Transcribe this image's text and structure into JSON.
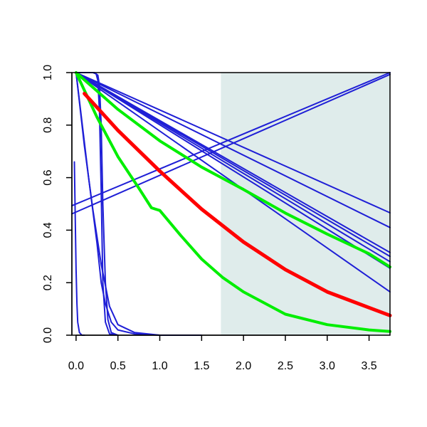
{
  "chart_data": {
    "type": "line",
    "title": "",
    "xlabel": "",
    "ylabel": "",
    "xlim": [
      -0.05,
      3.75
    ],
    "ylim": [
      0,
      1
    ],
    "grid": false,
    "shaded_region": {
      "x_from": 1.73,
      "x_to": 3.75,
      "color": "#dfeceb"
    },
    "x_ticks": [
      {
        "value": 0.0,
        "label": "0.0"
      },
      {
        "value": 0.5,
        "label": "0.5"
      },
      {
        "value": 1.0,
        "label": "1.0"
      },
      {
        "value": 1.5,
        "label": "1.5"
      },
      {
        "value": 2.0,
        "label": "2.0"
      },
      {
        "value": 2.5,
        "label": "2.5"
      },
      {
        "value": 3.0,
        "label": "3.0"
      },
      {
        "value": 3.5,
        "label": "3.5"
      }
    ],
    "y_ticks": [
      {
        "value": 0.0,
        "label": "0.0"
      },
      {
        "value": 0.2,
        "label": "0.2"
      },
      {
        "value": 0.4,
        "label": "0.4"
      },
      {
        "value": 0.6,
        "label": "0.6"
      },
      {
        "value": 0.8,
        "label": "0.8"
      },
      {
        "value": 1.0,
        "label": "1.0"
      }
    ],
    "colors": {
      "blue": "#1f1fd6",
      "red": "#ff0000",
      "green": "#00ee00"
    },
    "series": [
      {
        "color": "blue",
        "width": 2,
        "x": [
          0,
          3.75
        ],
        "y": [
          1.0,
          0.466
        ]
      },
      {
        "color": "blue",
        "width": 2,
        "x": [
          0,
          3.75
        ],
        "y": [
          1.0,
          0.41
        ]
      },
      {
        "color": "blue",
        "width": 2,
        "x": [
          0,
          3.75
        ],
        "y": [
          1.0,
          0.315
        ]
      },
      {
        "color": "blue",
        "width": 2,
        "x": [
          0,
          3.75
        ],
        "y": [
          1.0,
          0.3
        ]
      },
      {
        "color": "blue",
        "width": 2,
        "x": [
          0,
          3.75
        ],
        "y": [
          1.0,
          0.28
        ]
      },
      {
        "color": "blue",
        "width": 2,
        "x": [
          0,
          3.75
        ],
        "y": [
          1.0,
          0.255
        ]
      },
      {
        "color": "blue",
        "width": 2,
        "x": [
          0,
          3.75
        ],
        "y": [
          1.0,
          0.165
        ]
      },
      {
        "color": "blue",
        "width": 2,
        "x": [
          -0.05,
          3.75
        ],
        "y": [
          0.493,
          1.0
        ]
      },
      {
        "color": "blue",
        "width": 2,
        "x": [
          -0.05,
          3.75
        ],
        "y": [
          0.462,
          0.993
        ]
      },
      {
        "color": "blue",
        "width": 2,
        "x": [
          0,
          0.15,
          0.25,
          0.3,
          0.35,
          0.42,
          0.5,
          0.7,
          1.0,
          1.5
        ],
        "y": [
          1.0,
          0.6,
          0.35,
          0.2,
          0.12,
          0.05,
          0.02,
          0.005,
          0.0,
          0.0
        ]
      },
      {
        "color": "blue",
        "width": 2,
        "x": [
          0,
          0.1,
          0.2,
          0.3,
          0.4,
          0.5,
          0.7,
          1.0
        ],
        "y": [
          1.0,
          0.72,
          0.48,
          0.27,
          0.11,
          0.04,
          0.01,
          0.0
        ]
      },
      {
        "color": "blue",
        "width": 2,
        "x": [
          0,
          0.2,
          0.24,
          0.26,
          0.28,
          0.3,
          0.32,
          0.35,
          0.4,
          0.5
        ],
        "y": [
          1.0,
          1.0,
          0.995,
          0.97,
          0.85,
          0.55,
          0.2,
          0.05,
          0.005,
          0.0
        ]
      },
      {
        "color": "blue",
        "width": 2,
        "x": [
          0,
          0.22,
          0.26,
          0.28,
          0.3,
          0.32,
          0.35,
          0.38,
          0.42,
          0.5
        ],
        "y": [
          1.0,
          1.0,
          0.99,
          0.95,
          0.8,
          0.5,
          0.2,
          0.06,
          0.01,
          0.0
        ]
      },
      {
        "color": "blue",
        "width": 2,
        "x": [
          -0.02,
          -0.01,
          0.0,
          0.01,
          0.02,
          0.04,
          0.07,
          0.1
        ],
        "y": [
          0.66,
          0.45,
          0.25,
          0.12,
          0.05,
          0.01,
          0.0,
          0.0
        ]
      },
      {
        "color": "green",
        "width": 4,
        "x": [
          0,
          0.25,
          0.5,
          0.75,
          0.9,
          0.95,
          1.0,
          1.25,
          1.5,
          1.75,
          2.0,
          2.5,
          3.0,
          3.5,
          3.75
        ],
        "y": [
          1.0,
          0.83,
          0.68,
          0.56,
          0.485,
          0.48,
          0.475,
          0.38,
          0.29,
          0.22,
          0.165,
          0.08,
          0.04,
          0.02,
          0.014
        ]
      },
      {
        "color": "green",
        "width": 4,
        "x": [
          0,
          0.5,
          1.0,
          1.5,
          2.0,
          2.5,
          3.0,
          3.5,
          3.75
        ],
        "y": [
          1.0,
          0.86,
          0.74,
          0.64,
          0.555,
          0.465,
          0.385,
          0.31,
          0.26
        ]
      },
      {
        "color": "red",
        "width": 5,
        "x": [
          0.1,
          0.5,
          1.0,
          1.5,
          2.0,
          2.5,
          3.0,
          3.5,
          3.75
        ],
        "y": [
          0.92,
          0.78,
          0.625,
          0.48,
          0.355,
          0.25,
          0.165,
          0.105,
          0.075
        ]
      }
    ]
  }
}
